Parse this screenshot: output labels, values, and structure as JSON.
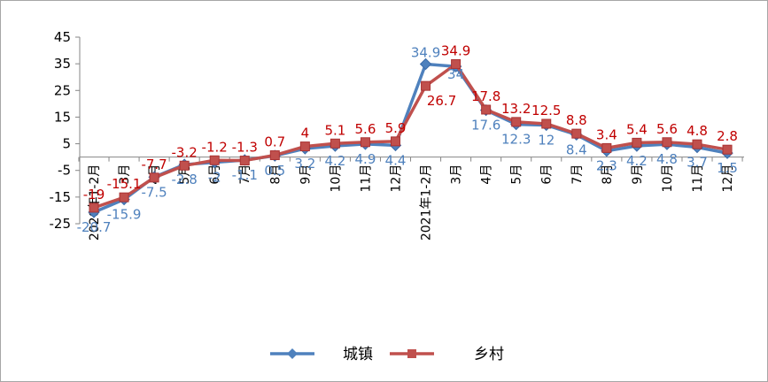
{
  "chart_data": {
    "type": "line",
    "title": "",
    "xlabel": "",
    "ylabel": "",
    "ylim": [
      -25,
      45
    ],
    "yticks": [
      -25,
      -15,
      -5,
      5,
      15,
      25,
      35,
      45
    ],
    "categories": [
      "2020年1-2月",
      "3月",
      "4月",
      "5月",
      "6月",
      "7月",
      "8月",
      "9月",
      "10月",
      "11月",
      "12月",
      "2021年1-2月",
      "3月",
      "4月",
      "5月",
      "6月",
      "7月",
      "8月",
      "9月",
      "10月",
      "11月",
      "12月"
    ],
    "legend_position": "bottom",
    "grid": false,
    "series": [
      {
        "name": "城镇",
        "color": "#4f81bd",
        "marker": "diamond",
        "values": [
          -20.7,
          -15.9,
          -7.5,
          -2.8,
          -2,
          -1.1,
          0.5,
          3.2,
          4.2,
          4.9,
          4.4,
          34.9,
          34,
          17.6,
          12.3,
          12,
          8.4,
          2.3,
          4.2,
          4.8,
          3.7,
          1.5
        ],
        "labels": [
          "-20.7",
          "-15.9",
          "-7.5",
          "-2.8",
          "-2",
          "-1.1",
          "0.5",
          "3.2",
          "4.2",
          "4.9",
          "4.4",
          "34.9",
          "34",
          "17.6",
          "12.3",
          "12",
          "8.4",
          "2.3",
          "4.2",
          "4.8",
          "3.7",
          "1.5"
        ]
      },
      {
        "name": "乡村",
        "color": "#c0504d",
        "marker": "square",
        "values": [
          -19,
          -15.1,
          -7.7,
          -3.2,
          -1.2,
          -1.3,
          0.7,
          4,
          5.1,
          5.6,
          5.9,
          26.7,
          34.9,
          17.8,
          13.2,
          12.5,
          8.8,
          3.4,
          5.4,
          5.6,
          4.8,
          2.8
        ],
        "labels": [
          "-19",
          "-15.1",
          "-7.7",
          "-3.2",
          "-1.2",
          "-1.3",
          "0.7",
          "4",
          "5.1",
          "5.6",
          "5.9",
          "26.7",
          "34.9",
          "17.8",
          "13.2",
          "12.5",
          "8.8",
          "3.4",
          "5.4",
          "5.6",
          "4.8",
          "2.8"
        ]
      }
    ]
  }
}
